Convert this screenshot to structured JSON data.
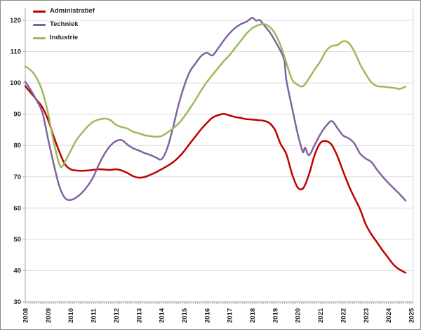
{
  "chart_data": {
    "type": "line",
    "title": "",
    "legend_position": "top-left-inside",
    "grid": true,
    "x_axis": {
      "tick_labels": [
        "2008",
        "2009",
        "2010",
        "2011",
        "2012",
        "2013",
        "2014",
        "2015",
        "2016",
        "2017",
        "2018",
        "2019",
        "2020",
        "2021",
        "2022",
        "2023",
        "2024",
        "2025"
      ],
      "range": [
        2008.0,
        2025.1
      ],
      "minor_ticks_per_year": 12,
      "label_rotation_deg": -90
    },
    "y_axis": {
      "tick_labels": [
        "30",
        "40",
        "50",
        "60",
        "70",
        "80",
        "90",
        "100",
        "110",
        "120"
      ],
      "tick_values": [
        30,
        40,
        50,
        60,
        70,
        80,
        90,
        100,
        110,
        120
      ],
      "range": [
        30,
        120
      ]
    },
    "style": {
      "gridline_color": "#dcdcdc",
      "axis_color": "#a6a6a6",
      "plot_border_color": "#d9d9d9",
      "text_color": "#262626",
      "background": "#ffffff",
      "line_width": 2.5
    },
    "series": [
      {
        "name": "Administratief",
        "color": "#C00000",
        "points": [
          [
            2008.0,
            99.0
          ],
          [
            2008.25,
            96.8
          ],
          [
            2008.5,
            94.6
          ],
          [
            2008.75,
            92.2
          ],
          [
            2009.0,
            88.3
          ],
          [
            2009.25,
            83.0
          ],
          [
            2009.5,
            78.0
          ],
          [
            2009.75,
            74.0
          ],
          [
            2010.0,
            72.4
          ],
          [
            2010.25,
            72.0
          ],
          [
            2010.5,
            71.9
          ],
          [
            2010.75,
            72.0
          ],
          [
            2011.0,
            72.2
          ],
          [
            2011.25,
            72.4
          ],
          [
            2011.5,
            72.3
          ],
          [
            2011.75,
            72.2
          ],
          [
            2012.0,
            72.4
          ],
          [
            2012.25,
            72.0
          ],
          [
            2012.5,
            71.2
          ],
          [
            2012.75,
            70.2
          ],
          [
            2013.0,
            69.7
          ],
          [
            2013.25,
            69.9
          ],
          [
            2013.5,
            70.6
          ],
          [
            2013.75,
            71.4
          ],
          [
            2014.0,
            72.4
          ],
          [
            2014.25,
            73.4
          ],
          [
            2014.5,
            74.6
          ],
          [
            2014.75,
            76.2
          ],
          [
            2015.0,
            78.2
          ],
          [
            2015.25,
            80.6
          ],
          [
            2015.5,
            82.9
          ],
          [
            2015.75,
            85.2
          ],
          [
            2016.0,
            87.2
          ],
          [
            2016.25,
            88.9
          ],
          [
            2016.5,
            89.7
          ],
          [
            2016.75,
            90.1
          ],
          [
            2017.0,
            89.6
          ],
          [
            2017.25,
            89.1
          ],
          [
            2017.5,
            88.8
          ],
          [
            2017.75,
            88.4
          ],
          [
            2018.0,
            88.3
          ],
          [
            2018.25,
            88.1
          ],
          [
            2018.5,
            87.9
          ],
          [
            2018.75,
            87.2
          ],
          [
            2019.0,
            85.0
          ],
          [
            2019.25,
            80.5
          ],
          [
            2019.5,
            77.3
          ],
          [
            2019.75,
            71.0
          ],
          [
            2020.0,
            66.6
          ],
          [
            2020.25,
            66.4
          ],
          [
            2020.5,
            70.8
          ],
          [
            2020.75,
            77.0
          ],
          [
            2021.0,
            80.8
          ],
          [
            2021.25,
            81.4
          ],
          [
            2021.5,
            80.2
          ],
          [
            2021.75,
            76.6
          ],
          [
            2022.0,
            71.8
          ],
          [
            2022.25,
            67.2
          ],
          [
            2022.5,
            63.3
          ],
          [
            2022.75,
            59.6
          ],
          [
            2023.0,
            54.8
          ],
          [
            2023.25,
            51.6
          ],
          [
            2023.5,
            49.0
          ],
          [
            2023.75,
            46.4
          ],
          [
            2024.0,
            44.0
          ],
          [
            2024.25,
            41.7
          ],
          [
            2024.5,
            40.3
          ],
          [
            2024.75,
            39.3
          ]
        ]
      },
      {
        "name": "Techniek",
        "color": "#8064A2",
        "points": [
          [
            2008.0,
            100.4
          ],
          [
            2008.25,
            97.6
          ],
          [
            2008.5,
            94.4
          ],
          [
            2008.75,
            90.6
          ],
          [
            2009.0,
            82.3
          ],
          [
            2009.25,
            74.2
          ],
          [
            2009.5,
            67.0
          ],
          [
            2009.75,
            63.2
          ],
          [
            2010.0,
            62.6
          ],
          [
            2010.25,
            63.4
          ],
          [
            2010.5,
            64.9
          ],
          [
            2010.75,
            67.1
          ],
          [
            2011.0,
            70.0
          ],
          [
            2011.25,
            74.0
          ],
          [
            2011.5,
            77.4
          ],
          [
            2011.75,
            79.9
          ],
          [
            2012.0,
            81.4
          ],
          [
            2012.25,
            81.7
          ],
          [
            2012.5,
            80.3
          ],
          [
            2012.75,
            79.1
          ],
          [
            2013.0,
            78.4
          ],
          [
            2013.25,
            77.6
          ],
          [
            2013.5,
            77.0
          ],
          [
            2013.75,
            76.2
          ],
          [
            2014.0,
            75.6
          ],
          [
            2014.25,
            79.0
          ],
          [
            2014.5,
            85.5
          ],
          [
            2014.75,
            93.0
          ],
          [
            2015.0,
            99.0
          ],
          [
            2015.25,
            103.6
          ],
          [
            2015.5,
            106.2
          ],
          [
            2015.75,
            108.6
          ],
          [
            2016.0,
            109.6
          ],
          [
            2016.25,
            108.8
          ],
          [
            2016.5,
            111.1
          ],
          [
            2016.75,
            113.6
          ],
          [
            2017.0,
            115.9
          ],
          [
            2017.25,
            117.6
          ],
          [
            2017.5,
            118.8
          ],
          [
            2017.75,
            119.6
          ],
          [
            2018.0,
            120.8
          ],
          [
            2018.17,
            119.9
          ],
          [
            2018.33,
            120.1
          ],
          [
            2018.5,
            118.6
          ],
          [
            2018.75,
            116.4
          ],
          [
            2019.0,
            113.5
          ],
          [
            2019.25,
            110.2
          ],
          [
            2019.42,
            107.0
          ],
          [
            2019.5,
            101.0
          ],
          [
            2019.75,
            92.2
          ],
          [
            2020.0,
            83.8
          ],
          [
            2020.17,
            79.2
          ],
          [
            2020.25,
            77.8
          ],
          [
            2020.33,
            79.3
          ],
          [
            2020.5,
            76.9
          ],
          [
            2020.75,
            80.2
          ],
          [
            2021.0,
            83.6
          ],
          [
            2021.25,
            86.2
          ],
          [
            2021.5,
            87.8
          ],
          [
            2021.75,
            85.6
          ],
          [
            2022.0,
            83.2
          ],
          [
            2022.25,
            82.3
          ],
          [
            2022.5,
            80.6
          ],
          [
            2022.75,
            77.4
          ],
          [
            2023.0,
            75.8
          ],
          [
            2023.25,
            74.7
          ],
          [
            2023.5,
            72.2
          ],
          [
            2023.75,
            70.0
          ],
          [
            2024.0,
            68.0
          ],
          [
            2024.25,
            66.2
          ],
          [
            2024.5,
            64.4
          ],
          [
            2024.75,
            62.4
          ]
        ]
      },
      {
        "name": "Industrie",
        "color": "#9BBB59",
        "points": [
          [
            2008.0,
            105.3
          ],
          [
            2008.25,
            104.0
          ],
          [
            2008.5,
            101.6
          ],
          [
            2008.75,
            97.4
          ],
          [
            2009.0,
            90.5
          ],
          [
            2009.25,
            81.3
          ],
          [
            2009.5,
            74.0
          ],
          [
            2009.62,
            73.3
          ],
          [
            2009.75,
            74.8
          ],
          [
            2010.0,
            78.3
          ],
          [
            2010.25,
            81.7
          ],
          [
            2010.5,
            84.0
          ],
          [
            2010.75,
            86.1
          ],
          [
            2011.0,
            87.6
          ],
          [
            2011.25,
            88.3
          ],
          [
            2011.5,
            88.6
          ],
          [
            2011.75,
            88.1
          ],
          [
            2012.0,
            86.6
          ],
          [
            2012.25,
            85.9
          ],
          [
            2012.5,
            85.4
          ],
          [
            2012.75,
            84.4
          ],
          [
            2013.0,
            83.9
          ],
          [
            2013.25,
            83.3
          ],
          [
            2013.5,
            83.0
          ],
          [
            2013.75,
            82.8
          ],
          [
            2014.0,
            83.0
          ],
          [
            2014.25,
            84.1
          ],
          [
            2014.5,
            85.4
          ],
          [
            2014.75,
            87.0
          ],
          [
            2015.0,
            89.2
          ],
          [
            2015.25,
            91.8
          ],
          [
            2015.5,
            94.6
          ],
          [
            2015.75,
            97.6
          ],
          [
            2016.0,
            100.3
          ],
          [
            2016.25,
            102.6
          ],
          [
            2016.5,
            104.8
          ],
          [
            2016.75,
            107.0
          ],
          [
            2017.0,
            108.9
          ],
          [
            2017.25,
            111.2
          ],
          [
            2017.5,
            113.5
          ],
          [
            2017.75,
            115.8
          ],
          [
            2018.0,
            117.5
          ],
          [
            2018.25,
            118.4
          ],
          [
            2018.5,
            118.8
          ],
          [
            2018.75,
            118.0
          ],
          [
            2019.0,
            115.8
          ],
          [
            2019.25,
            112.0
          ],
          [
            2019.5,
            106.5
          ],
          [
            2019.75,
            101.2
          ],
          [
            2020.0,
            99.4
          ],
          [
            2020.25,
            99.0
          ],
          [
            2020.5,
            101.5
          ],
          [
            2020.75,
            104.3
          ],
          [
            2021.0,
            106.9
          ],
          [
            2021.25,
            110.2
          ],
          [
            2021.5,
            111.8
          ],
          [
            2021.75,
            112.1
          ],
          [
            2022.0,
            113.3
          ],
          [
            2022.25,
            112.8
          ],
          [
            2022.5,
            110.0
          ],
          [
            2022.75,
            106.0
          ],
          [
            2023.0,
            102.8
          ],
          [
            2023.25,
            100.2
          ],
          [
            2023.5,
            99.0
          ],
          [
            2023.75,
            98.8
          ],
          [
            2024.0,
            98.6
          ],
          [
            2024.25,
            98.4
          ],
          [
            2024.5,
            98.1
          ],
          [
            2024.75,
            98.8
          ]
        ]
      }
    ]
  }
}
